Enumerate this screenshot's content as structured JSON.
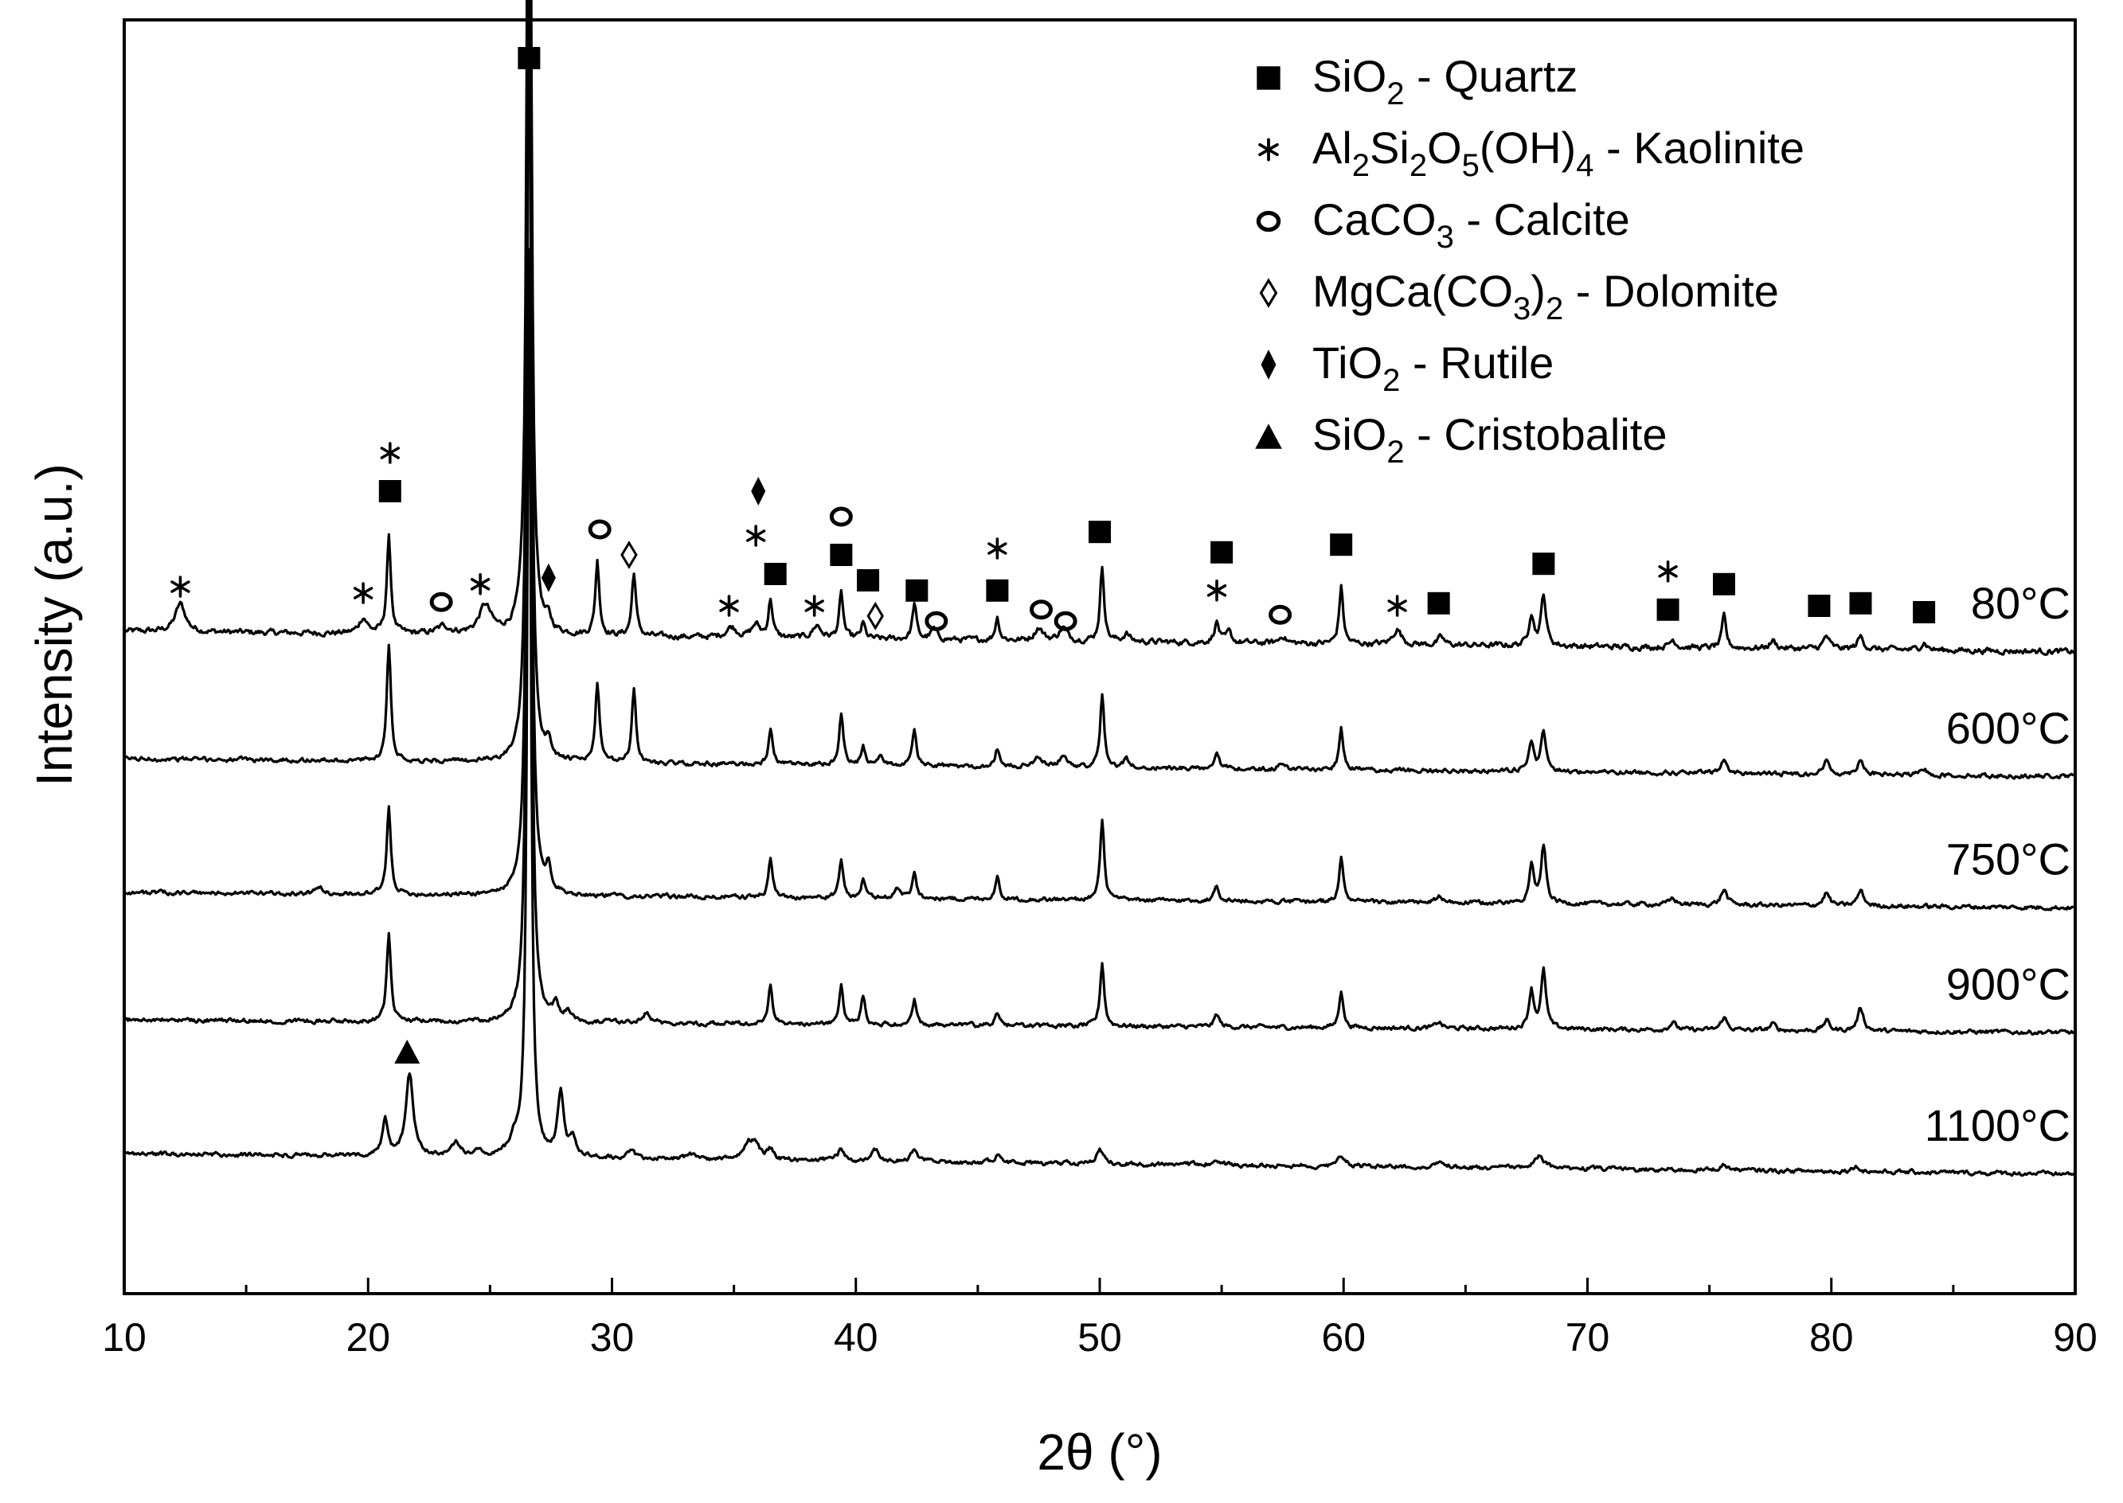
{
  "chart_data": {
    "type": "line",
    "title": "",
    "xlabel": "2θ (°)",
    "ylabel": "Intensity (a.u.)",
    "xlim": [
      10,
      90
    ],
    "ylim": [
      0,
      1
    ],
    "grid": false,
    "legend_position": "top-right",
    "x_ticks": [
      10,
      20,
      30,
      40,
      50,
      60,
      70,
      80,
      90
    ],
    "x_tick_labels": [
      "10",
      "20",
      "30",
      "40",
      "50",
      "60",
      "70",
      "80",
      "90"
    ],
    "legend": [
      {
        "symbol": "square",
        "formula": [
          [
            "SiO",
            ""
          ],
          [
            "2",
            "sub"
          ],
          [
            " - Quartz",
            ""
          ]
        ],
        "text": "SiO2 - Quartz"
      },
      {
        "symbol": "asterisk",
        "formula": [
          [
            "Al",
            ""
          ],
          [
            "2",
            "sub"
          ],
          [
            "Si",
            ""
          ],
          [
            "2",
            "sub"
          ],
          [
            "O",
            ""
          ],
          [
            "5",
            "sub"
          ],
          [
            "(OH)",
            ""
          ],
          [
            "4",
            "sub"
          ],
          [
            " - Kaolinite",
            ""
          ]
        ],
        "text": "Al2Si2O5(OH)4 - Kaolinite"
      },
      {
        "symbol": "circle",
        "formula": [
          [
            "CaCO",
            ""
          ],
          [
            "3",
            "sub"
          ],
          [
            " - Calcite",
            ""
          ]
        ],
        "text": "CaCO3 - Calcite"
      },
      {
        "symbol": "diamond-open",
        "formula": [
          [
            "MgCa(CO",
            ""
          ],
          [
            "3",
            "sub"
          ],
          [
            ")",
            ""
          ],
          [
            "2",
            "sub"
          ],
          [
            " - Dolomite",
            ""
          ]
        ],
        "text": "MgCa(CO3)2 - Dolomite"
      },
      {
        "symbol": "diamond-filled",
        "formula": [
          [
            "TiO",
            ""
          ],
          [
            "2",
            "sub"
          ],
          [
            " - Rutile",
            ""
          ]
        ],
        "text": "TiO2 - Rutile"
      },
      {
        "symbol": "triangle",
        "formula": [
          [
            "SiO",
            ""
          ],
          [
            "2",
            "sub"
          ],
          [
            " - Cristobalite",
            ""
          ]
        ],
        "text": "SiO2 - Cristobalite"
      }
    ],
    "series": [
      {
        "name": "80°C",
        "offset": 0.52,
        "tilt": -0.016,
        "noise": 0.004,
        "peaks": [
          [
            12.3,
            0.022,
            0.25
          ],
          [
            19.8,
            0.012,
            0.2
          ],
          [
            20.85,
            0.075,
            0.1
          ],
          [
            23.1,
            0.006,
            0.3
          ],
          [
            24.8,
            0.022,
            0.3
          ],
          [
            26.6,
            0.98,
            0.09
          ],
          [
            27.4,
            0.008,
            0.12
          ],
          [
            29.4,
            0.058,
            0.1
          ],
          [
            30.9,
            0.05,
            0.1
          ],
          [
            34.9,
            0.008,
            0.25
          ],
          [
            35.9,
            0.01,
            0.2
          ],
          [
            36.5,
            0.03,
            0.1
          ],
          [
            38.4,
            0.01,
            0.2
          ],
          [
            39.4,
            0.035,
            0.1
          ],
          [
            40.3,
            0.012,
            0.1
          ],
          [
            42.4,
            0.028,
            0.1
          ],
          [
            43.2,
            0.008,
            0.15
          ],
          [
            45.8,
            0.018,
            0.1
          ],
          [
            47.5,
            0.01,
            0.2
          ],
          [
            48.5,
            0.01,
            0.2
          ],
          [
            50.1,
            0.058,
            0.1
          ],
          [
            51.1,
            0.006,
            0.15
          ],
          [
            54.8,
            0.016,
            0.12
          ],
          [
            55.3,
            0.008,
            0.12
          ],
          [
            57.5,
            0.006,
            0.15
          ],
          [
            59.9,
            0.045,
            0.1
          ],
          [
            62.2,
            0.012,
            0.2
          ],
          [
            64.0,
            0.006,
            0.15
          ],
          [
            67.7,
            0.025,
            0.12
          ],
          [
            68.2,
            0.04,
            0.12
          ],
          [
            73.5,
            0.006,
            0.15
          ],
          [
            75.6,
            0.025,
            0.1
          ],
          [
            77.6,
            0.006,
            0.15
          ],
          [
            79.8,
            0.01,
            0.15
          ],
          [
            81.2,
            0.01,
            0.15
          ],
          [
            83.8,
            0.006,
            0.15
          ]
        ]
      },
      {
        "name": "600°C",
        "offset": 0.42,
        "tilt": -0.014,
        "noise": 0.003,
        "peaks": [
          [
            20.85,
            0.092,
            0.1
          ],
          [
            26.6,
            0.9,
            0.09
          ],
          [
            27.4,
            0.014,
            0.12
          ],
          [
            29.4,
            0.062,
            0.1
          ],
          [
            30.9,
            0.058,
            0.1
          ],
          [
            36.5,
            0.028,
            0.1
          ],
          [
            39.4,
            0.04,
            0.1
          ],
          [
            40.3,
            0.014,
            0.1
          ],
          [
            41.0,
            0.008,
            0.15
          ],
          [
            42.4,
            0.028,
            0.1
          ],
          [
            45.8,
            0.014,
            0.1
          ],
          [
            47.5,
            0.008,
            0.2
          ],
          [
            48.5,
            0.008,
            0.2
          ],
          [
            50.1,
            0.056,
            0.1
          ],
          [
            51.1,
            0.006,
            0.15
          ],
          [
            54.8,
            0.014,
            0.12
          ],
          [
            57.5,
            0.005,
            0.15
          ],
          [
            59.9,
            0.032,
            0.1
          ],
          [
            67.7,
            0.022,
            0.12
          ],
          [
            68.2,
            0.032,
            0.12
          ],
          [
            75.6,
            0.01,
            0.15
          ],
          [
            79.8,
            0.01,
            0.15
          ],
          [
            81.2,
            0.012,
            0.15
          ],
          [
            83.8,
            0.005,
            0.15
          ]
        ]
      },
      {
        "name": "750°C",
        "offset": 0.315,
        "tilt": -0.012,
        "noise": 0.003,
        "peaks": [
          [
            18.0,
            0.006,
            0.15
          ],
          [
            20.85,
            0.068,
            0.1
          ],
          [
            26.6,
            0.9,
            0.09
          ],
          [
            27.4,
            0.02,
            0.12
          ],
          [
            36.5,
            0.032,
            0.1
          ],
          [
            39.4,
            0.03,
            0.1
          ],
          [
            40.3,
            0.014,
            0.1
          ],
          [
            41.7,
            0.008,
            0.15
          ],
          [
            42.4,
            0.022,
            0.1
          ],
          [
            45.8,
            0.018,
            0.1
          ],
          [
            50.1,
            0.062,
            0.1
          ],
          [
            54.8,
            0.012,
            0.12
          ],
          [
            59.9,
            0.036,
            0.1
          ],
          [
            63.9,
            0.005,
            0.15
          ],
          [
            67.7,
            0.03,
            0.12
          ],
          [
            68.2,
            0.045,
            0.12
          ],
          [
            73.5,
            0.005,
            0.15
          ],
          [
            75.6,
            0.012,
            0.15
          ],
          [
            79.8,
            0.01,
            0.15
          ],
          [
            81.2,
            0.012,
            0.15
          ]
        ]
      },
      {
        "name": "900°C",
        "offset": 0.215,
        "tilt": -0.01,
        "noise": 0.003,
        "peaks": [
          [
            20.85,
            0.07,
            0.1
          ],
          [
            26.6,
            0.9,
            0.09
          ],
          [
            27.7,
            0.012,
            0.15
          ],
          [
            28.2,
            0.008,
            0.15
          ],
          [
            31.4,
            0.008,
            0.2
          ],
          [
            36.5,
            0.03,
            0.1
          ],
          [
            39.4,
            0.03,
            0.1
          ],
          [
            40.3,
            0.022,
            0.1
          ],
          [
            42.4,
            0.02,
            0.1
          ],
          [
            45.8,
            0.01,
            0.1
          ],
          [
            50.1,
            0.05,
            0.1
          ],
          [
            54.8,
            0.01,
            0.12
          ],
          [
            59.9,
            0.03,
            0.1
          ],
          [
            63.9,
            0.005,
            0.15
          ],
          [
            67.7,
            0.03,
            0.12
          ],
          [
            68.2,
            0.045,
            0.12
          ],
          [
            73.5,
            0.006,
            0.15
          ],
          [
            75.6,
            0.01,
            0.15
          ],
          [
            77.6,
            0.005,
            0.15
          ],
          [
            79.8,
            0.008,
            0.15
          ],
          [
            81.2,
            0.018,
            0.15
          ]
        ]
      },
      {
        "name": "1100°C",
        "offset": 0.11,
        "tilt": -0.016,
        "noise": 0.003,
        "peaks": [
          [
            20.7,
            0.03,
            0.12
          ],
          [
            21.7,
            0.065,
            0.18
          ],
          [
            23.6,
            0.01,
            0.2
          ],
          [
            24.5,
            0.006,
            0.2
          ],
          [
            26.0,
            0.012,
            0.2
          ],
          [
            26.6,
            0.71,
            0.09
          ],
          [
            27.9,
            0.05,
            0.15
          ],
          [
            28.4,
            0.015,
            0.15
          ],
          [
            30.8,
            0.005,
            0.2
          ],
          [
            33.2,
            0.005,
            0.2
          ],
          [
            35.6,
            0.012,
            0.2
          ],
          [
            35.9,
            0.012,
            0.2
          ],
          [
            36.5,
            0.008,
            0.15
          ],
          [
            39.4,
            0.01,
            0.15
          ],
          [
            40.8,
            0.008,
            0.2
          ],
          [
            42.4,
            0.01,
            0.15
          ],
          [
            45.8,
            0.005,
            0.15
          ],
          [
            50.0,
            0.012,
            0.15
          ],
          [
            54.8,
            0.004,
            0.2
          ],
          [
            59.9,
            0.008,
            0.2
          ],
          [
            64.0,
            0.004,
            0.2
          ],
          [
            68.0,
            0.01,
            0.25
          ],
          [
            75.6,
            0.004,
            0.2
          ],
          [
            81.0,
            0.004,
            0.2
          ]
        ]
      }
    ],
    "annotations": [
      {
        "symbol": "square",
        "x": 26.6,
        "y": 0.97
      },
      {
        "symbol": "square",
        "x": 20.9,
        "y": 0.63
      },
      {
        "symbol": "asterisk",
        "x": 20.9,
        "y": 0.66
      },
      {
        "symbol": "asterisk",
        "x": 12.3,
        "y": 0.555
      },
      {
        "symbol": "asterisk",
        "x": 19.8,
        "y": 0.55
      },
      {
        "symbol": "circle",
        "x": 23.0,
        "y": 0.543
      },
      {
        "symbol": "asterisk",
        "x": 24.6,
        "y": 0.557
      },
      {
        "symbol": "diamond-filled",
        "x": 27.4,
        "y": 0.562
      },
      {
        "symbol": "circle",
        "x": 29.5,
        "y": 0.6
      },
      {
        "symbol": "diamond-open",
        "x": 30.7,
        "y": 0.58
      },
      {
        "symbol": "diamond-filled",
        "x": 36.0,
        "y": 0.63
      },
      {
        "symbol": "asterisk",
        "x": 35.9,
        "y": 0.595
      },
      {
        "symbol": "asterisk",
        "x": 34.8,
        "y": 0.54
      },
      {
        "symbol": "square",
        "x": 36.7,
        "y": 0.565
      },
      {
        "symbol": "asterisk",
        "x": 38.3,
        "y": 0.54
      },
      {
        "symbol": "circle",
        "x": 39.4,
        "y": 0.61
      },
      {
        "symbol": "square",
        "x": 39.4,
        "y": 0.58
      },
      {
        "symbol": "square",
        "x": 40.5,
        "y": 0.56
      },
      {
        "symbol": "diamond-open",
        "x": 40.8,
        "y": 0.532
      },
      {
        "symbol": "square",
        "x": 42.5,
        "y": 0.552
      },
      {
        "symbol": "circle",
        "x": 43.3,
        "y": 0.528
      },
      {
        "symbol": "asterisk",
        "x": 45.8,
        "y": 0.585
      },
      {
        "symbol": "square",
        "x": 45.8,
        "y": 0.552
      },
      {
        "symbol": "circle",
        "x": 47.6,
        "y": 0.537
      },
      {
        "symbol": "circle",
        "x": 48.6,
        "y": 0.528
      },
      {
        "symbol": "square",
        "x": 50.0,
        "y": 0.598
      },
      {
        "symbol": "square",
        "x": 55.0,
        "y": 0.582
      },
      {
        "symbol": "asterisk",
        "x": 54.8,
        "y": 0.552
      },
      {
        "symbol": "circle",
        "x": 57.4,
        "y": 0.533
      },
      {
        "symbol": "square",
        "x": 59.9,
        "y": 0.588
      },
      {
        "symbol": "asterisk",
        "x": 62.2,
        "y": 0.54
      },
      {
        "symbol": "square",
        "x": 63.9,
        "y": 0.542
      },
      {
        "symbol": "square",
        "x": 68.2,
        "y": 0.573
      },
      {
        "symbol": "asterisk",
        "x": 73.3,
        "y": 0.567
      },
      {
        "symbol": "square",
        "x": 73.3,
        "y": 0.537
      },
      {
        "symbol": "square",
        "x": 75.6,
        "y": 0.557
      },
      {
        "symbol": "square",
        "x": 79.5,
        "y": 0.54
      },
      {
        "symbol": "square",
        "x": 81.2,
        "y": 0.542
      },
      {
        "symbol": "square",
        "x": 83.8,
        "y": 0.535
      },
      {
        "symbol": "triangle",
        "x": 21.6,
        "y": 0.19
      }
    ]
  }
}
